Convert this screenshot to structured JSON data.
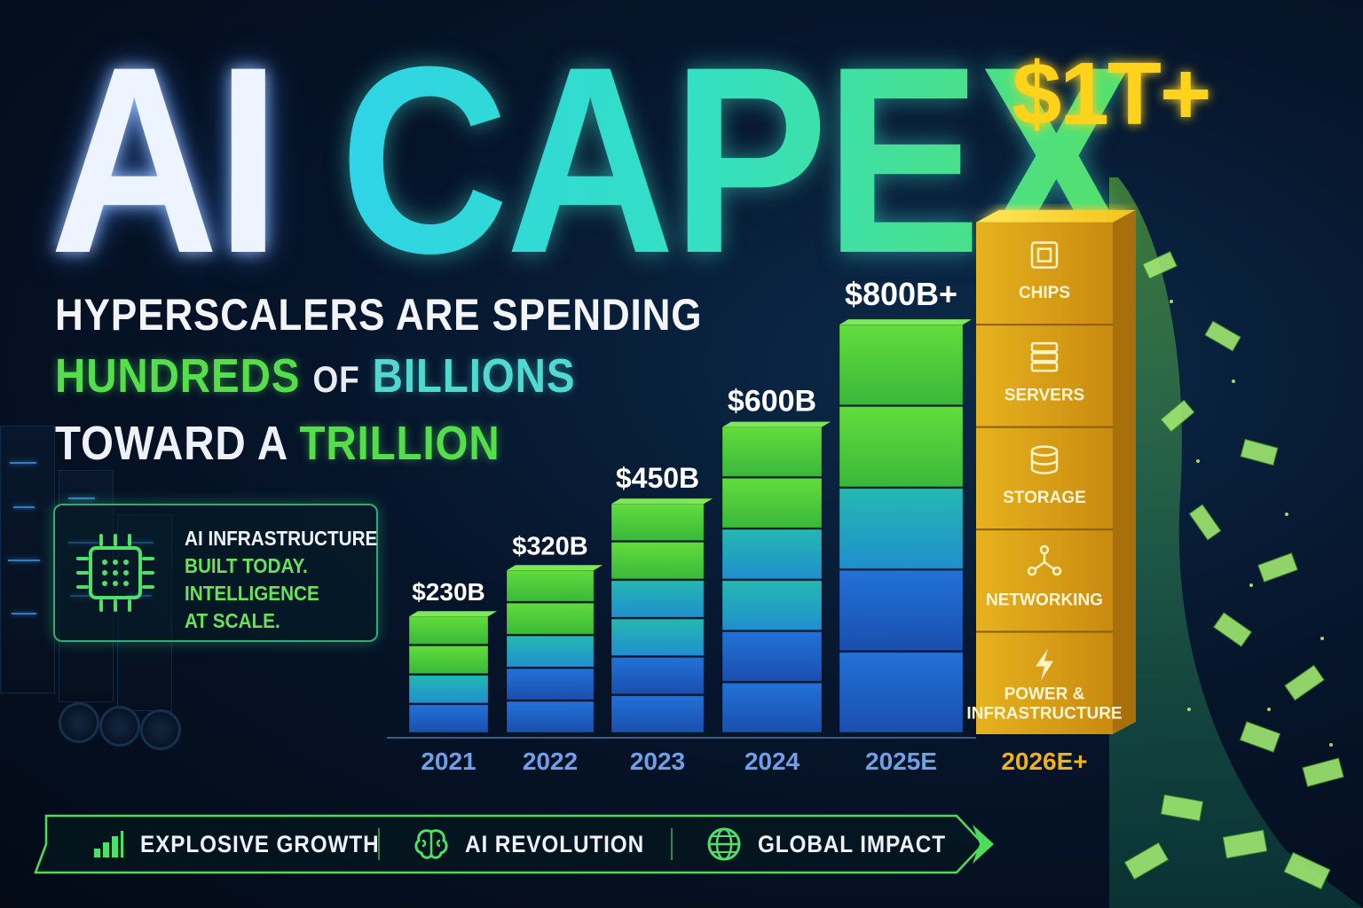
{
  "title": {
    "word1": "AI",
    "word2": "CAPEX"
  },
  "headline": {
    "line1": "HYPERSCALERS ARE SPENDING",
    "line2_a": "HUNDREDS",
    "line2_b": "OF",
    "line2_c": "BILLIONS",
    "line3_a": "TOWARD A",
    "line3_b": "TRILLION"
  },
  "infobox": {
    "line1": "AI INFRASTRUCTURE",
    "line2": "BUILT TODAY.",
    "line3": "INTELLIGENCE",
    "line4": "AT SCALE."
  },
  "chart_data": {
    "type": "bar",
    "categories": [
      "2021",
      "2022",
      "2023",
      "2024",
      "2025E",
      "2026E+"
    ],
    "values": [
      230,
      320,
      450,
      600,
      800,
      1000
    ],
    "data_labels": [
      "$230B",
      "$320B",
      "$450B",
      "$600B",
      "$800B+",
      "$1T+"
    ],
    "final_bar_segments": [
      "CHIPS",
      "SERVERS",
      "STORAGE",
      "NETWORKING",
      "POWER & INFRASTRUCTURE"
    ],
    "ylim": [
      0,
      1000
    ],
    "grid": false,
    "colors": {
      "green": "#56d43a",
      "blue": "#1f6fd6",
      "gold": "#e3a51a",
      "highlight": "#f5d312"
    }
  },
  "banner": {
    "item1": {
      "label": "EXPLOSIVE GROWTH",
      "icon": "bar-chart-icon"
    },
    "item2": {
      "label": "AI REVOLUTION",
      "icon": "brain-icon"
    },
    "item3": {
      "label": "GLOBAL IMPACT",
      "icon": "globe-icon"
    }
  }
}
